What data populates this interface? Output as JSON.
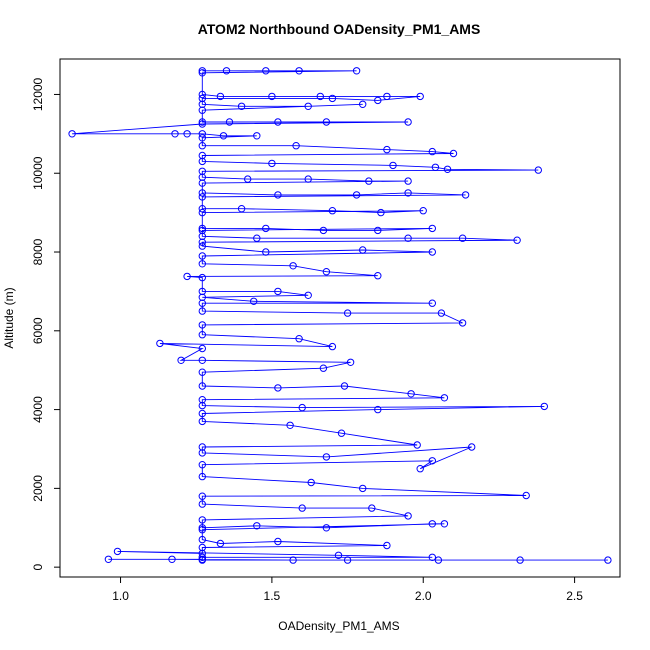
{
  "chart_data": {
    "type": "line",
    "title": "ATOM2 Northbound OADensity_PM1_AMS",
    "xlabel": "OADensity_PM1_AMS",
    "ylabel": "Altitude (m)",
    "xlim": [
      0.8,
      2.65
    ],
    "ylim": [
      -250,
      12900
    ],
    "xticks": [
      1.0,
      1.5,
      2.0,
      2.5
    ],
    "xtick_labels": [
      "1.0",
      "1.5",
      "2.0",
      "2.5"
    ],
    "yticks": [
      0,
      2000,
      4000,
      6000,
      8000,
      10000,
      12000
    ],
    "ytick_labels": [
      "0",
      "2000",
      "4000",
      "6000",
      "8000",
      "10000",
      "12000"
    ],
    "grid": false,
    "series": [
      {
        "color": "#0000ff",
        "marker": "open-circle",
        "points": [
          [
            1.27,
            12600
          ],
          [
            1.35,
            12600
          ],
          [
            1.48,
            12600
          ],
          [
            1.59,
            12600
          ],
          [
            1.78,
            12600
          ],
          [
            1.27,
            12550
          ],
          [
            1.27,
            12000
          ],
          [
            1.33,
            11950
          ],
          [
            1.5,
            11950
          ],
          [
            1.66,
            11950
          ],
          [
            1.88,
            11950
          ],
          [
            1.99,
            11950
          ],
          [
            1.85,
            11850
          ],
          [
            1.7,
            11900
          ],
          [
            1.27,
            11900
          ],
          [
            1.27,
            11750
          ],
          [
            1.4,
            11700
          ],
          [
            1.62,
            11700
          ],
          [
            1.8,
            11750
          ],
          [
            1.27,
            11600
          ],
          [
            1.27,
            11300
          ],
          [
            1.36,
            11300
          ],
          [
            1.52,
            11300
          ],
          [
            1.68,
            11300
          ],
          [
            1.95,
            11300
          ],
          [
            1.27,
            11250
          ],
          [
            0.84,
            11000
          ],
          [
            1.18,
            11000
          ],
          [
            1.22,
            11000
          ],
          [
            1.27,
            11000
          ],
          [
            1.34,
            10950
          ],
          [
            1.45,
            10950
          ],
          [
            1.27,
            10900
          ],
          [
            1.27,
            10700
          ],
          [
            1.58,
            10700
          ],
          [
            1.88,
            10600
          ],
          [
            2.03,
            10550
          ],
          [
            2.1,
            10500
          ],
          [
            1.27,
            10450
          ],
          [
            1.27,
            10300
          ],
          [
            1.5,
            10250
          ],
          [
            1.9,
            10200
          ],
          [
            2.04,
            10150
          ],
          [
            2.08,
            10100
          ],
          [
            2.38,
            10080
          ],
          [
            1.27,
            10050
          ],
          [
            1.27,
            9900
          ],
          [
            1.42,
            9850
          ],
          [
            1.62,
            9850
          ],
          [
            1.82,
            9800
          ],
          [
            1.95,
            9800
          ],
          [
            1.27,
            9750
          ],
          [
            1.27,
            9500
          ],
          [
            1.52,
            9450
          ],
          [
            1.78,
            9450
          ],
          [
            1.95,
            9500
          ],
          [
            2.14,
            9450
          ],
          [
            1.27,
            9400
          ],
          [
            1.27,
            9100
          ],
          [
            1.4,
            9100
          ],
          [
            1.7,
            9050
          ],
          [
            1.86,
            9000
          ],
          [
            2.0,
            9050
          ],
          [
            1.27,
            9000
          ],
          [
            1.27,
            8600
          ],
          [
            1.48,
            8600
          ],
          [
            1.67,
            8550
          ],
          [
            1.85,
            8550
          ],
          [
            2.03,
            8600
          ],
          [
            1.27,
            8550
          ],
          [
            1.27,
            8400
          ],
          [
            1.45,
            8350
          ],
          [
            1.95,
            8350
          ],
          [
            2.13,
            8350
          ],
          [
            2.31,
            8300
          ],
          [
            1.27,
            8250
          ],
          [
            1.27,
            8150
          ],
          [
            1.48,
            8000
          ],
          [
            1.8,
            8050
          ],
          [
            2.03,
            8000
          ],
          [
            1.27,
            7900
          ],
          [
            1.27,
            7700
          ],
          [
            1.57,
            7650
          ],
          [
            1.68,
            7500
          ],
          [
            1.85,
            7400
          ],
          [
            1.22,
            7380
          ],
          [
            1.27,
            7350
          ],
          [
            1.27,
            7000
          ],
          [
            1.52,
            7000
          ],
          [
            1.62,
            6900
          ],
          [
            1.27,
            6850
          ],
          [
            1.44,
            6750
          ],
          [
            2.03,
            6700
          ],
          [
            1.27,
            6700
          ],
          [
            1.27,
            6500
          ],
          [
            1.75,
            6450
          ],
          [
            2.06,
            6450
          ],
          [
            2.13,
            6200
          ],
          [
            1.27,
            6150
          ],
          [
            1.27,
            5900
          ],
          [
            1.59,
            5800
          ],
          [
            1.7,
            5600
          ],
          [
            1.13,
            5680
          ],
          [
            1.27,
            5550
          ],
          [
            1.2,
            5250
          ],
          [
            1.27,
            5250
          ],
          [
            1.76,
            5200
          ],
          [
            1.67,
            5050
          ],
          [
            1.27,
            4950
          ],
          [
            1.27,
            4600
          ],
          [
            1.52,
            4550
          ],
          [
            1.74,
            4600
          ],
          [
            1.96,
            4400
          ],
          [
            2.07,
            4300
          ],
          [
            1.27,
            4250
          ],
          [
            1.27,
            4100
          ],
          [
            1.6,
            4050
          ],
          [
            2.4,
            4080
          ],
          [
            1.85,
            4000
          ],
          [
            1.27,
            3900
          ],
          [
            1.27,
            3700
          ],
          [
            1.56,
            3600
          ],
          [
            1.73,
            3400
          ],
          [
            1.98,
            3100
          ],
          [
            1.27,
            3050
          ],
          [
            1.27,
            2900
          ],
          [
            1.68,
            2800
          ],
          [
            2.16,
            3050
          ],
          [
            1.99,
            2500
          ],
          [
            2.03,
            2700
          ],
          [
            1.27,
            2600
          ],
          [
            1.27,
            2300
          ],
          [
            1.63,
            2150
          ],
          [
            1.8,
            2000
          ],
          [
            2.34,
            1820
          ],
          [
            1.27,
            1800
          ],
          [
            1.27,
            1600
          ],
          [
            1.6,
            1500
          ],
          [
            1.83,
            1500
          ],
          [
            1.95,
            1300
          ],
          [
            1.27,
            1200
          ],
          [
            1.27,
            1000
          ],
          [
            1.45,
            1050
          ],
          [
            1.68,
            1000
          ],
          [
            2.03,
            1100
          ],
          [
            2.07,
            1100
          ],
          [
            1.27,
            950
          ],
          [
            1.27,
            700
          ],
          [
            1.33,
            600
          ],
          [
            1.52,
            650
          ],
          [
            1.88,
            550
          ],
          [
            1.27,
            500
          ],
          [
            1.27,
            350
          ],
          [
            0.99,
            400
          ],
          [
            1.72,
            300
          ],
          [
            2.03,
            250
          ],
          [
            1.27,
            250
          ],
          [
            1.27,
            200
          ],
          [
            0.96,
            200
          ],
          [
            1.17,
            200
          ],
          [
            1.57,
            180
          ],
          [
            1.75,
            180
          ],
          [
            2.05,
            180
          ],
          [
            2.32,
            180
          ],
          [
            2.61,
            180
          ],
          [
            1.27,
            180
          ]
        ]
      }
    ]
  }
}
